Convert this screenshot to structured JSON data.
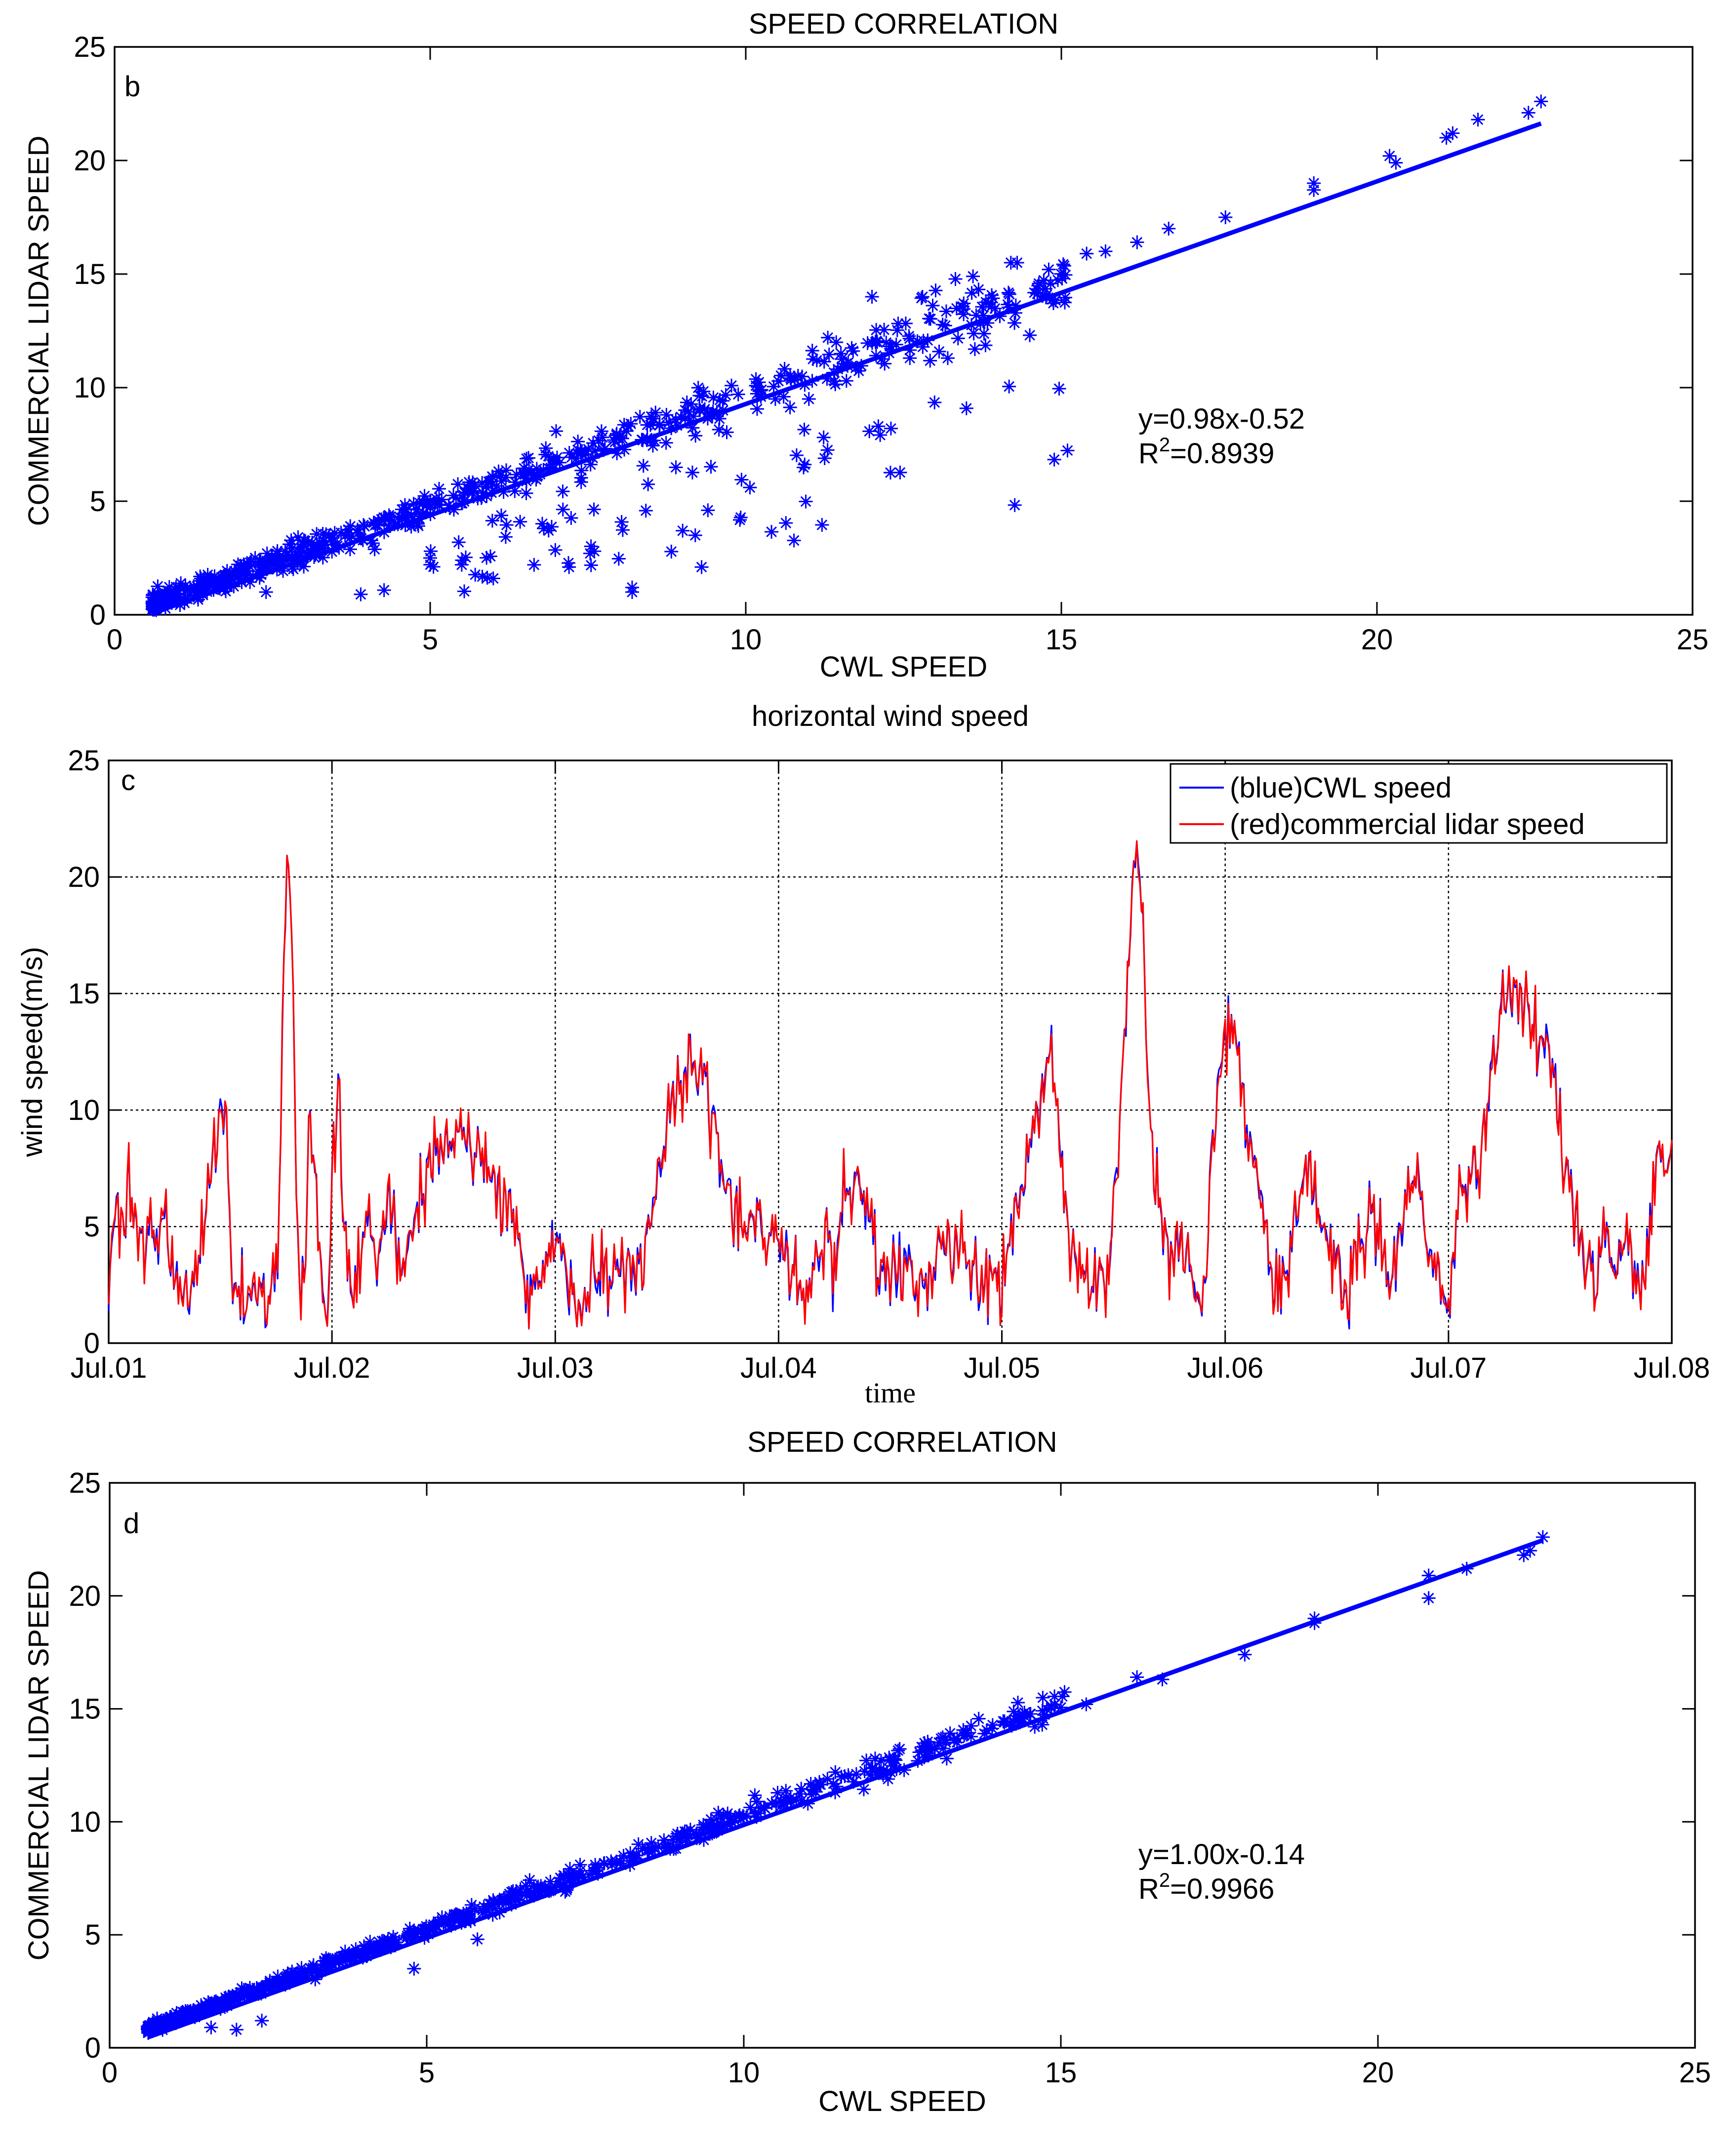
{
  "chart_data": [
    {
      "panel_label": "b",
      "type": "scatter",
      "title": "SPEED CORRELATION",
      "xlabel": "CWL SPEED",
      "ylabel": "COMMERCIAL LIDAR SPEED",
      "xlim": [
        0,
        25
      ],
      "ylim": [
        0,
        25
      ],
      "xticks": [
        0,
        5,
        10,
        15,
        20,
        25
      ],
      "yticks": [
        0,
        5,
        10,
        15,
        20,
        25
      ],
      "grid": false,
      "marker": "*",
      "color": "#0000ff",
      "fit": {
        "slope": 0.98,
        "intercept": -0.52,
        "x_range": [
          0.6,
          22.6
        ]
      },
      "annotation": {
        "line1": "y=0.98x-0.52",
        "r2_prefix": "R",
        "r2_sup": "2",
        "r2_value": "=0.8939"
      },
      "scatter": {
        "spread": 0.35,
        "outlier_fraction": 0.18,
        "n": 700,
        "seed": 11
      },
      "points": [
        [
          22.6,
          22.6
        ],
        [
          22.4,
          22.1
        ],
        [
          21.6,
          21.8
        ],
        [
          21.2,
          21.2
        ],
        [
          21.1,
          21.0
        ],
        [
          20.3,
          19.9
        ],
        [
          20.2,
          20.2
        ],
        [
          19.0,
          18.7
        ],
        [
          19.0,
          19.0
        ],
        [
          17.6,
          17.5
        ],
        [
          16.7,
          17.0
        ],
        [
          16.2,
          16.4
        ],
        [
          15.7,
          16.0
        ],
        [
          15.4,
          15.9
        ],
        [
          14.8,
          15.2
        ],
        [
          14.3,
          15.5
        ],
        [
          14.2,
          15.5
        ],
        [
          13.6,
          14.9
        ],
        [
          12.8,
          14.0
        ],
        [
          12.0,
          14.0
        ],
        [
          11.3,
          12.2
        ],
        [
          12.6,
          11.3
        ],
        [
          13.2,
          11.3
        ],
        [
          12.1,
          8.3
        ],
        [
          12.3,
          8.2
        ],
        [
          11.0,
          9.5
        ],
        [
          9.4,
          4.6
        ],
        [
          9.0,
          3.7
        ],
        [
          9.2,
          3.5
        ],
        [
          9.3,
          2.1
        ],
        [
          8.2,
          1.2
        ],
        [
          8.2,
          1.0
        ],
        [
          7.2,
          2.1
        ],
        [
          6.0,
          1.6
        ],
        [
          5.0,
          2.5
        ],
        [
          5.5,
          2.2
        ],
        [
          3.9,
          0.9
        ],
        [
          2.4,
          1.0
        ],
        [
          7.6,
          2.8
        ],
        [
          6.8,
          3.8
        ],
        [
          10.6,
          9.6
        ]
      ]
    },
    {
      "panel_label": "c",
      "type": "line",
      "title": "horizontal wind speed",
      "xlabel": "time",
      "ylabel": "wind speed(m/s)",
      "xlim": [
        0,
        7
      ],
      "ylim": [
        0,
        25
      ],
      "xticks": [
        0,
        1,
        2,
        3,
        4,
        5,
        6,
        7
      ],
      "xtick_labels": [
        "Jul.01",
        "Jul.02",
        "Jul.03",
        "Jul.04",
        "Jul.05",
        "Jul.06",
        "Jul.07",
        "Jul.08"
      ],
      "yticks": [
        0,
        5,
        10,
        15,
        20,
        25
      ],
      "grid": true,
      "legend": "top-right",
      "noise": 0.8,
      "samples_per_day": 144,
      "series": [
        {
          "name": "(blue)CWL speed",
          "color": "#0000ff",
          "seed": 5
        },
        {
          "name": "(red)commercial lidar speed",
          "color": "#ff0000",
          "seed": 7
        }
      ],
      "envelope_points": [
        [
          0.0,
          2.6
        ],
        [
          0.03,
          5.5
        ],
        [
          0.06,
          5.0
        ],
        [
          0.09,
          7.5
        ],
        [
          0.12,
          5.0
        ],
        [
          0.15,
          3.0
        ],
        [
          0.19,
          5.5
        ],
        [
          0.22,
          3.5
        ],
        [
          0.25,
          6.0
        ],
        [
          0.28,
          3.0
        ],
        [
          0.32,
          2.2
        ],
        [
          0.38,
          2.5
        ],
        [
          0.42,
          5.0
        ],
        [
          0.46,
          7.5
        ],
        [
          0.5,
          10.6
        ],
        [
          0.53,
          9.0
        ],
        [
          0.55,
          2.5
        ],
        [
          0.6,
          2.0
        ],
        [
          0.66,
          2.3
        ],
        [
          0.72,
          2.0
        ],
        [
          0.76,
          3.0
        ],
        [
          0.78,
          15.0
        ],
        [
          0.8,
          22.2
        ],
        [
          0.82,
          18.0
        ],
        [
          0.84,
          6.0
        ],
        [
          0.86,
          2.0
        ],
        [
          0.88,
          3.5
        ],
        [
          0.9,
          10.0
        ],
        [
          0.92,
          8.0
        ],
        [
          0.95,
          3.0
        ],
        [
          0.98,
          0.8
        ],
        [
          1.0,
          6.5
        ],
        [
          1.03,
          12.5
        ],
        [
          1.05,
          5.0
        ],
        [
          1.08,
          2.0
        ],
        [
          1.13,
          3.5
        ],
        [
          1.17,
          6.0
        ],
        [
          1.2,
          3.0
        ],
        [
          1.22,
          5.0
        ],
        [
          1.26,
          5.5
        ],
        [
          1.3,
          3.0
        ],
        [
          1.35,
          5.0
        ],
        [
          1.42,
          7.5
        ],
        [
          1.5,
          8.5
        ],
        [
          1.6,
          8.5
        ],
        [
          1.68,
          8.0
        ],
        [
          1.75,
          6.5
        ],
        [
          1.82,
          5.0
        ],
        [
          1.9,
          2.0
        ],
        [
          1.96,
          3.5
        ],
        [
          2.0,
          5.0
        ],
        [
          2.05,
          2.5
        ],
        [
          2.1,
          1.2
        ],
        [
          2.15,
          3.5
        ],
        [
          2.25,
          3.0
        ],
        [
          2.32,
          3.0
        ],
        [
          2.4,
          3.5
        ],
        [
          2.45,
          7.0
        ],
        [
          2.52,
          10.5
        ],
        [
          2.6,
          11.5
        ],
        [
          2.66,
          11.5
        ],
        [
          2.72,
          8.5
        ],
        [
          2.78,
          6.0
        ],
        [
          2.85,
          5.5
        ],
        [
          2.92,
          5.0
        ],
        [
          3.0,
          4.5
        ],
        [
          3.05,
          3.5
        ],
        [
          3.1,
          1.8
        ],
        [
          3.15,
          2.8
        ],
        [
          3.2,
          5.0
        ],
        [
          3.25,
          3.5
        ],
        [
          3.3,
          6.5
        ],
        [
          3.35,
          7.0
        ],
        [
          3.4,
          6.0
        ],
        [
          3.45,
          3.5
        ],
        [
          3.52,
          3.0
        ],
        [
          3.58,
          3.5
        ],
        [
          3.62,
          2.2
        ],
        [
          3.7,
          3.0
        ],
        [
          3.76,
          4.5
        ],
        [
          3.85,
          3.5
        ],
        [
          3.9,
          2.5
        ],
        [
          3.96,
          3.0
        ],
        [
          4.0,
          2.5
        ],
        [
          4.05,
          5.0
        ],
        [
          4.1,
          7.0
        ],
        [
          4.15,
          10.0
        ],
        [
          4.22,
          12.5
        ],
        [
          4.25,
          10.0
        ],
        [
          4.28,
          6.0
        ],
        [
          4.33,
          3.0
        ],
        [
          4.4,
          2.5
        ],
        [
          4.48,
          3.0
        ],
        [
          4.52,
          8.0
        ],
        [
          4.56,
          15.0
        ],
        [
          4.6,
          21.5
        ],
        [
          4.63,
          18.0
        ],
        [
          4.66,
          10.0
        ],
        [
          4.7,
          5.0
        ],
        [
          4.75,
          3.5
        ],
        [
          4.8,
          4.5
        ],
        [
          4.85,
          2.5
        ],
        [
          4.9,
          2.0
        ],
        [
          4.94,
          8.0
        ],
        [
          4.98,
          12.0
        ],
        [
          5.02,
          14.0
        ],
        [
          5.06,
          12.5
        ],
        [
          5.1,
          9.0
        ],
        [
          5.15,
          6.5
        ],
        [
          5.2,
          3.5
        ],
        [
          5.25,
          2.0
        ],
        [
          5.3,
          4.5
        ],
        [
          5.35,
          7.5
        ],
        [
          5.4,
          6.5
        ],
        [
          5.45,
          5.0
        ],
        [
          5.5,
          3.0
        ],
        [
          5.55,
          2.0
        ],
        [
          5.6,
          4.0
        ],
        [
          5.65,
          5.5
        ],
        [
          5.7,
          4.0
        ],
        [
          5.75,
          2.5
        ],
        [
          5.8,
          6.0
        ],
        [
          5.85,
          7.5
        ],
        [
          5.9,
          5.0
        ],
        [
          5.95,
          2.5
        ],
        [
          6.0,
          1.5
        ],
        [
          6.02,
          3.5
        ],
        [
          6.05,
          6.5
        ],
        [
          6.1,
          7.0
        ],
        [
          6.15,
          8.0
        ],
        [
          6.2,
          12.0
        ],
        [
          6.25,
          15.0
        ],
        [
          6.3,
          15.5
        ],
        [
          6.35,
          14.5
        ],
        [
          6.4,
          13.0
        ],
        [
          6.45,
          12.5
        ],
        [
          6.5,
          9.5
        ],
        [
          6.55,
          6.5
        ],
        [
          6.6,
          4.0
        ],
        [
          6.65,
          3.0
        ],
        [
          6.7,
          4.5
        ],
        [
          6.75,
          3.5
        ],
        [
          6.8,
          4.5
        ],
        [
          6.85,
          3.0
        ],
        [
          6.9,
          3.5
        ],
        [
          6.93,
          8.0
        ],
        [
          6.96,
          8.5
        ],
        [
          7.0,
          8.2
        ]
      ]
    },
    {
      "panel_label": "d",
      "type": "scatter",
      "title": "SPEED CORRELATION",
      "xlabel": "CWL SPEED",
      "ylabel": "COMMERCIAL LIDAR SPEED",
      "xlim": [
        0,
        25
      ],
      "ylim": [
        0,
        25
      ],
      "xticks": [
        0,
        5,
        10,
        15,
        20,
        25
      ],
      "yticks": [
        0,
        5,
        10,
        15,
        20,
        25
      ],
      "grid": false,
      "marker": "*",
      "color": "#0000ff",
      "fit": {
        "slope": 1.0,
        "intercept": -0.14,
        "x_range": [
          0.6,
          22.6
        ]
      },
      "annotation": {
        "line1": "y=1.00x-0.14",
        "r2_prefix": "R",
        "r2_sup": "2",
        "r2_value": "=0.9966"
      },
      "scatter": {
        "spread": 0.15,
        "outlier_fraction": 0.0,
        "n": 750,
        "seed": 23
      },
      "points": [
        [
          22.6,
          22.6
        ],
        [
          22.3,
          21.8
        ],
        [
          22.4,
          22.0
        ],
        [
          21.4,
          21.2
        ],
        [
          20.8,
          20.9
        ],
        [
          20.8,
          19.9
        ],
        [
          19.0,
          18.8
        ],
        [
          19.0,
          19.0
        ],
        [
          17.9,
          17.4
        ],
        [
          16.6,
          16.3
        ],
        [
          16.2,
          16.4
        ],
        [
          15.4,
          15.2
        ],
        [
          13.2,
          12.8
        ],
        [
          5.8,
          4.8
        ],
        [
          4.8,
          3.5
        ],
        [
          2.0,
          0.8
        ],
        [
          2.4,
          1.2
        ],
        [
          1.6,
          0.9
        ]
      ]
    }
  ]
}
